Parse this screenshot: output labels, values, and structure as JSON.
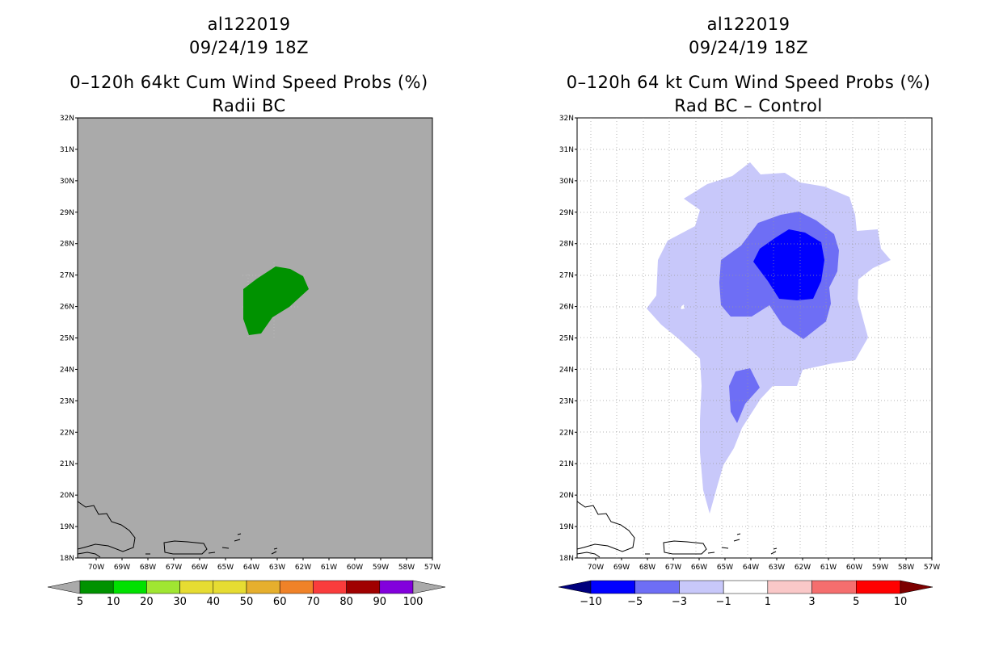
{
  "left_panel": {
    "storm_id": "al122019",
    "datetime": "09/24/19 18Z",
    "product": "0–120h 64kt Cum Wind Speed Probs (%)",
    "subtitle": "Radii BC"
  },
  "right_panel": {
    "storm_id": "al122019",
    "datetime": "09/24/19 18Z",
    "product": "0–120h 64 kt Cum Wind Speed Probs (%)",
    "subtitle": "Rad BC – Control"
  },
  "axes": {
    "lon_labels": [
      "70W",
      "69W",
      "68W",
      "67W",
      "66W",
      "65W",
      "64W",
      "63W",
      "62W",
      "61W",
      "60W",
      "59W",
      "58W",
      "57W"
    ],
    "lat_labels": [
      "18N",
      "19N",
      "20N",
      "21N",
      "22N",
      "23N",
      "24N",
      "25N",
      "26N",
      "27N",
      "28N",
      "29N",
      "30N",
      "31N",
      "32N"
    ]
  },
  "left_colorbar": {
    "labels": [
      "5",
      "10",
      "20",
      "30",
      "40",
      "50",
      "60",
      "70",
      "80",
      "90",
      "100"
    ],
    "colors": [
      "#009200",
      "#00e100",
      "#a0e632",
      "#e6dc32",
      "#e6dc32",
      "#e6af2d",
      "#f08228",
      "#fa3c3c",
      "#a00000",
      "#8200dc"
    ],
    "under_color": "#aaaaaa",
    "over_color": "#aaaaaa"
  },
  "right_colorbar": {
    "labels": [
      "−10",
      "−5",
      "−3",
      "−1",
      "1",
      "3",
      "5",
      "10"
    ],
    "colors": [
      "#0000ff",
      "#6e6ef5",
      "#c8c8fa",
      "#ffffff",
      "#fac8c8",
      "#f56e6e",
      "#ff0000"
    ],
    "under_color": "#00007d",
    "over_color": "#7d0000"
  },
  "colors": {
    "left_background": "#aaaaaa",
    "left_prob_5_10": "#009200",
    "diff_light": "#c8c8fa",
    "diff_medium": "#6e6ef5",
    "diff_strong": "#0000ff"
  }
}
